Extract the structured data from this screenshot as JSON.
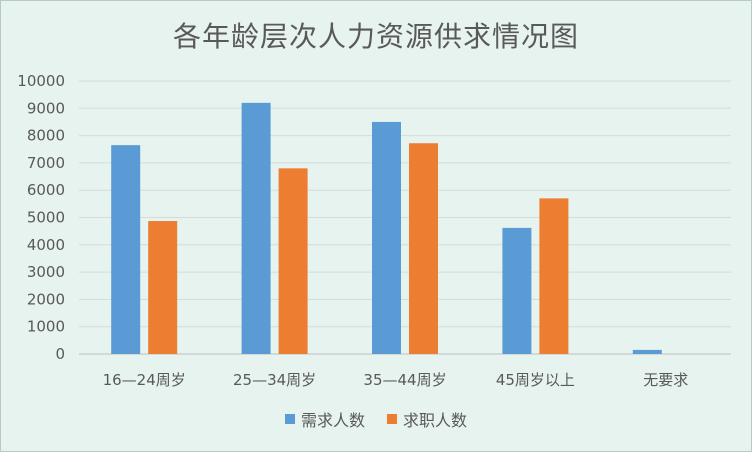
{
  "chart_data": {
    "type": "bar",
    "title": "各年龄层次人力资源供求情况图",
    "categories": [
      "16—24周岁",
      "25—34周岁",
      "35—44周岁",
      "45周岁以上",
      "无要求"
    ],
    "series": [
      {
        "name": "需求人数",
        "color": "#5b9bd5",
        "values": [
          7650,
          9200,
          8500,
          4620,
          150
        ]
      },
      {
        "name": "求职人数",
        "color": "#ed7d31",
        "values": [
          4870,
          6800,
          7720,
          5700,
          0
        ]
      }
    ],
    "ylim": [
      0,
      10000
    ],
    "yticks": [
      "0",
      "1000",
      "2000",
      "3000",
      "4000",
      "5000",
      "6000",
      "7000",
      "8000",
      "9000",
      "10000"
    ],
    "grid": true,
    "legend_position": "bottom"
  }
}
